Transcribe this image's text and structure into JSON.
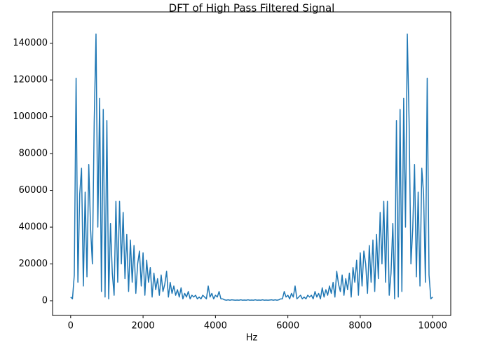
{
  "chart_data": {
    "type": "line",
    "title": "DFT of High Pass Filtered Signal",
    "x_label": "Hz",
    "color": "#1f77b4",
    "x": [
      0,
      50,
      100,
      150,
      200,
      250,
      300,
      350,
      400,
      450,
      500,
      550,
      600,
      650,
      700,
      750,
      800,
      850,
      900,
      950,
      1000,
      1050,
      1100,
      1150,
      1200,
      1250,
      1300,
      1350,
      1400,
      1450,
      1500,
      1550,
      1600,
      1650,
      1700,
      1750,
      1800,
      1850,
      1900,
      1950,
      2000,
      2050,
      2100,
      2150,
      2200,
      2250,
      2300,
      2350,
      2400,
      2450,
      2500,
      2550,
      2600,
      2650,
      2700,
      2750,
      2800,
      2850,
      2900,
      2950,
      3000,
      3050,
      3100,
      3150,
      3200,
      3250,
      3300,
      3350,
      3400,
      3450,
      3500,
      3550,
      3600,
      3650,
      3700,
      3750,
      3800,
      3850,
      3900,
      3950,
      4000,
      4050,
      4100,
      4150,
      4200,
      4250,
      4300,
      4350,
      4400,
      4450,
      4500,
      4550,
      4600,
      4650,
      4700,
      4750,
      4800,
      4850,
      4900,
      4950,
      5000,
      5050,
      5100,
      5150,
      5200,
      5250,
      5300,
      5350,
      5400,
      5450,
      5500,
      5550,
      5600,
      5650,
      5700,
      5750,
      5800,
      5850,
      5900,
      5950,
      6000,
      6050,
      6100,
      6150,
      6200,
      6250,
      6300,
      6350,
      6400,
      6450,
      6500,
      6550,
      6600,
      6650,
      6700,
      6750,
      6800,
      6850,
      6900,
      6950,
      7000,
      7050,
      7100,
      7150,
      7200,
      7250,
      7300,
      7350,
      7400,
      7450,
      7500,
      7550,
      7600,
      7650,
      7700,
      7750,
      7800,
      7850,
      7900,
      7950,
      8000,
      8050,
      8100,
      8150,
      8200,
      8250,
      8300,
      8350,
      8400,
      8450,
      8500,
      8550,
      8600,
      8650,
      8700,
      8750,
      8800,
      8850,
      8900,
      8950,
      9000,
      9050,
      9100,
      9150,
      9200,
      9250,
      9300,
      9350,
      9400,
      9450,
      9500,
      9550,
      9600,
      9650,
      9700,
      9750,
      9800,
      9850,
      9900,
      9950,
      10000
    ],
    "values": [
      2000,
      1000,
      14000,
      121000,
      10000,
      58000,
      72000,
      8000,
      59000,
      13000,
      74000,
      39000,
      20000,
      97000,
      145000,
      40000,
      110000,
      5000,
      104000,
      2000,
      98000,
      1000,
      42000,
      15000,
      3000,
      54000,
      10000,
      54000,
      20000,
      48000,
      12000,
      36000,
      5000,
      33000,
      10000,
      30000,
      4000,
      20000,
      27000,
      8000,
      26000,
      3000,
      22000,
      10000,
      18000,
      2000,
      15000,
      6000,
      12000,
      3000,
      14000,
      5000,
      9000,
      16000,
      2000,
      10000,
      4000,
      8000,
      3000,
      6000,
      2000,
      7000,
      1000,
      4000,
      2000,
      5000,
      1000,
      3000,
      2000,
      3000,
      1000,
      2000,
      1000,
      3000,
      2000,
      1000,
      8000,
      2000,
      4000,
      1000,
      3000,
      2000,
      5000,
      1000,
      1000,
      500,
      300,
      500,
      300,
      500,
      400,
      300,
      400,
      300,
      500,
      300,
      400,
      300,
      500,
      300,
      400,
      300,
      500,
      300,
      400,
      300,
      500,
      300,
      400,
      300,
      400,
      500,
      300,
      500,
      300,
      500,
      1000,
      1000,
      5000,
      2000,
      3000,
      1000,
      4000,
      2000,
      8000,
      1000,
      2000,
      3000,
      1000,
      2000,
      1000,
      3000,
      2000,
      3000,
      1000,
      5000,
      2000,
      4000,
      1000,
      7000,
      2000,
      6000,
      3000,
      8000,
      4000,
      10000,
      2000,
      16000,
      9000,
      5000,
      14000,
      3000,
      12000,
      6000,
      15000,
      2000,
      18000,
      10000,
      22000,
      3000,
      26000,
      8000,
      27000,
      20000,
      4000,
      30000,
      10000,
      33000,
      5000,
      36000,
      12000,
      48000,
      20000,
      54000,
      10000,
      54000,
      3000,
      15000,
      42000,
      1000,
      98000,
      2000,
      104000,
      5000,
      110000,
      40000,
      145000,
      97000,
      20000,
      39000,
      74000,
      13000,
      59000,
      8000,
      72000,
      58000,
      10000,
      121000,
      14000,
      1000,
      2000
    ],
    "xlim": [
      -500,
      10500
    ],
    "xticks": [
      0,
      2000,
      4000,
      6000,
      8000,
      10000
    ],
    "ylim": [
      -8000,
      157000
    ],
    "yticks": [
      0,
      20000,
      40000,
      60000,
      80000,
      100000,
      120000,
      140000
    ]
  }
}
